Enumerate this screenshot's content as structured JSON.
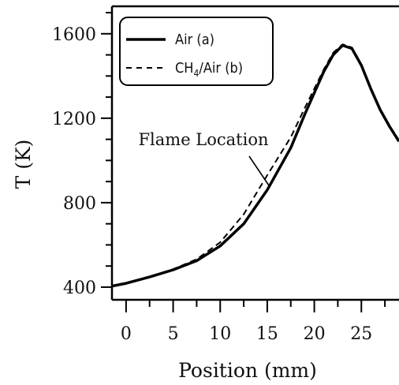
{
  "chart_data": {
    "type": "line",
    "xlabel": "Position (mm)",
    "ylabel": "T (K)",
    "xlim": [
      -1.5,
      29
    ],
    "ylim": [
      340,
      1730
    ],
    "x_ticks": [
      0,
      5,
      10,
      15,
      20,
      25
    ],
    "y_ticks": [
      400,
      800,
      1200,
      1600
    ],
    "x_minor_step": 2.5,
    "y_minor_step": 100,
    "legend": {
      "placement": "top-left",
      "entries": [
        "Air (a)",
        "CH4/Air (b)"
      ]
    },
    "legend_parts": {
      "ch4_prefix": "CH",
      "ch4_sub": "4",
      "ch4_suffix": "/Air (b)"
    },
    "annotation": {
      "text": "Flame Location",
      "points_to": [
        15.2,
        880
      ]
    },
    "series": [
      {
        "name": "Air (a)",
        "style": "solid",
        "color": "#000000",
        "x": [
          -1.5,
          0,
          2.5,
          5,
          7.5,
          10,
          12.5,
          15,
          17.5,
          19,
          20,
          21,
          22,
          23,
          24,
          25,
          26,
          27,
          28,
          29
        ],
        "y": [
          405,
          418,
          448,
          482,
          525,
          595,
          700,
          860,
          1060,
          1220,
          1320,
          1420,
          1500,
          1545,
          1530,
          1450,
          1340,
          1240,
          1160,
          1090
        ]
      },
      {
        "name": "CH4/Air (b)",
        "style": "dashed",
        "color": "#000000",
        "x": [
          -1.5,
          0,
          2.5,
          5,
          7.5,
          10,
          12.5,
          15,
          17.5,
          19,
          20,
          21,
          22,
          23,
          24,
          25,
          26,
          27,
          28,
          29
        ],
        "y": [
          405,
          418,
          450,
          485,
          532,
          612,
          745,
          930,
          1110,
          1250,
          1340,
          1430,
          1510,
          1550,
          1535,
          1455,
          1345,
          1245,
          1165,
          1095
        ]
      }
    ]
  }
}
